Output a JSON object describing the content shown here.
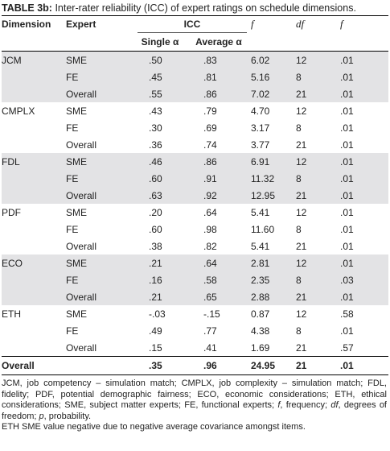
{
  "caption": {
    "label": "TABLE 3b:",
    "text": "Inter-rater reliability (ICC) of expert ratings on schedule dimensions."
  },
  "header": {
    "dimension": "Dimension",
    "expert": "Expert",
    "icc": "ICC",
    "single": "Single α",
    "average": "Average α",
    "f1": "f",
    "df": "df",
    "f2": "f"
  },
  "groups": [
    {
      "dimension": "JCM",
      "shaded": true,
      "rows": [
        {
          "expert": "SME",
          "single": ".50",
          "average": ".83",
          "f": "6.02",
          "df": "12",
          "p": ".01"
        },
        {
          "expert": "FE",
          "single": ".45",
          "average": ".81",
          "f": "5.16",
          "df": "8",
          "p": ".01"
        },
        {
          "expert": "Overall",
          "single": ".55",
          "average": ".86",
          "f": "7.02",
          "df": "21",
          "p": ".01"
        }
      ]
    },
    {
      "dimension": "CMPLX",
      "shaded": false,
      "rows": [
        {
          "expert": "SME",
          "single": ".43",
          "average": ".79",
          "f": "4.70",
          "df": "12",
          "p": ".01"
        },
        {
          "expert": "FE",
          "single": ".30",
          "average": ".69",
          "f": "3.17",
          "df": "8",
          "p": ".01"
        },
        {
          "expert": "Overall",
          "single": ".36",
          "average": ".74",
          "f": "3.77",
          "df": "21",
          "p": ".01"
        }
      ]
    },
    {
      "dimension": "FDL",
      "shaded": true,
      "rows": [
        {
          "expert": "SME",
          "single": ".46",
          "average": ".86",
          "f": "6.91",
          "df": "12",
          "p": ".01"
        },
        {
          "expert": "FE",
          "single": ".60",
          "average": ".91",
          "f": "11.32",
          "df": "8",
          "p": ".01"
        },
        {
          "expert": "Overall",
          "single": ".63",
          "average": ".92",
          "f": "12.95",
          "df": "21",
          "p": ".01"
        }
      ]
    },
    {
      "dimension": "PDF",
      "shaded": false,
      "rows": [
        {
          "expert": "SME",
          "single": ".20",
          "average": ".64",
          "f": "5.41",
          "df": "12",
          "p": ".01"
        },
        {
          "expert": "FE",
          "single": ".60",
          "average": ".98",
          "f": "11.60",
          "df": "8",
          "p": ".01"
        },
        {
          "expert": "Overall",
          "single": ".38",
          "average": ".82",
          "f": "5.41",
          "df": "21",
          "p": ".01"
        }
      ]
    },
    {
      "dimension": "ECO",
      "shaded": true,
      "rows": [
        {
          "expert": "SME",
          "single": ".21",
          "average": ".64",
          "f": "2.81",
          "df": "12",
          "p": ".01"
        },
        {
          "expert": "FE",
          "single": ".16",
          "average": ".58",
          "f": "2.35",
          "df": "8",
          "p": ".03"
        },
        {
          "expert": "Overall",
          "single": ".21",
          "average": ".65",
          "f": "2.88",
          "df": "21",
          "p": ".01"
        }
      ]
    },
    {
      "dimension": "ETH",
      "shaded": false,
      "rows": [
        {
          "expert": "SME",
          "single": "-.03",
          "average": "-.15",
          "f": "0.87",
          "df": "12",
          "p": ".58"
        },
        {
          "expert": "FE",
          "single": ".49",
          "average": ".77",
          "f": "4.38",
          "df": "8",
          "p": ".01"
        },
        {
          "expert": "Overall",
          "single": ".15",
          "average": ".41",
          "f": "1.69",
          "df": "21",
          "p": ".57"
        }
      ]
    }
  ],
  "overall": {
    "label": "Overall",
    "single": ".35",
    "average": ".96",
    "f": "24.95",
    "df": "21",
    "p": ".01"
  },
  "notes": {
    "abbrev": [
      {
        "t": "JCM, job competency – simulation match; CMPLX, job complexity – simulation match; FDL, fidelity; PDF, potential demographic fairness; ECO, economic considerations; ETH, ethical considerations; SME, subject matter experts; FE, functional experts; "
      },
      {
        "t": "f",
        "i": true
      },
      {
        "t": ", frequency; "
      },
      {
        "t": "df",
        "i": true
      },
      {
        "t": ", degrees of freedom; "
      },
      {
        "t": "p",
        "i": true
      },
      {
        "t": ", probability."
      }
    ],
    "eth_note": "ETH SME value negative due to negative average covariance amongst items."
  },
  "colors": {
    "shade": "#e3e3e5",
    "rule": "#000000",
    "text": "#222222"
  }
}
